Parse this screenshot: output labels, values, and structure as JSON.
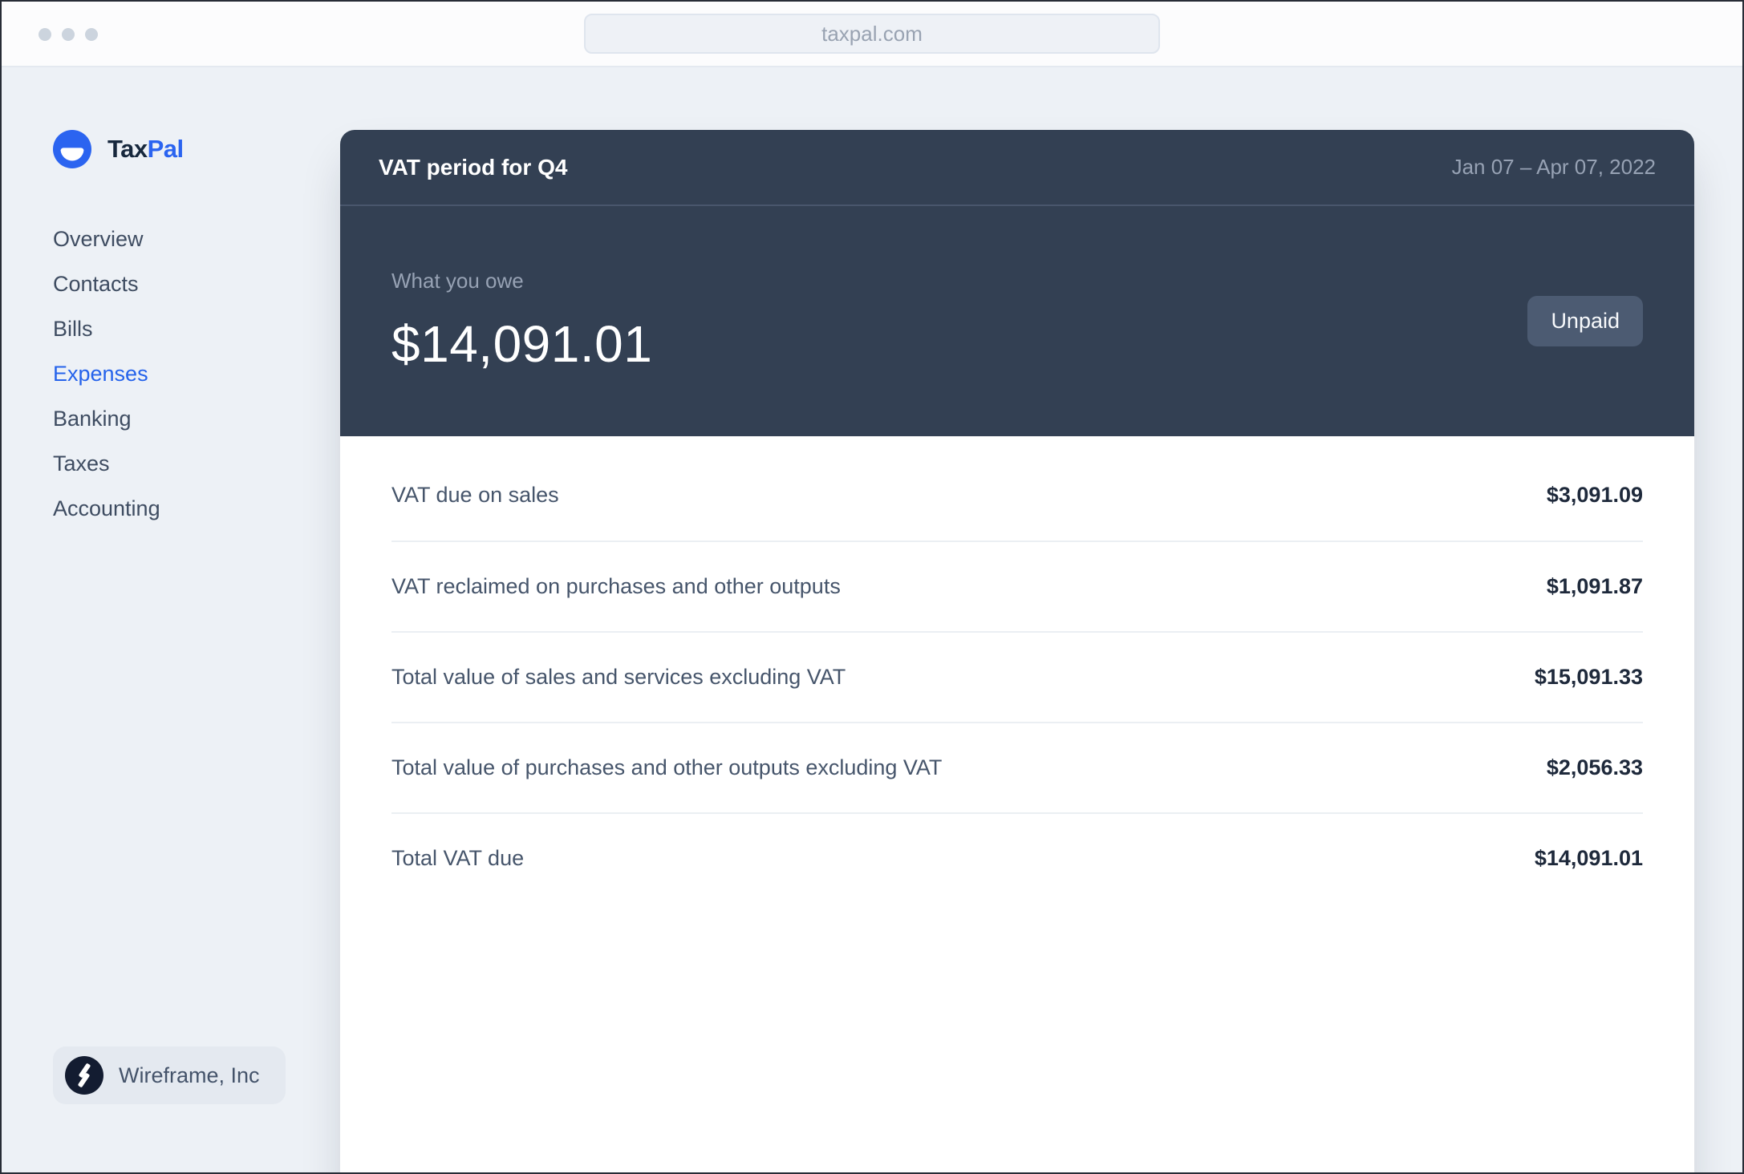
{
  "browser": {
    "url": "taxpal.com"
  },
  "brand": {
    "name_primary": "Tax",
    "name_secondary": "Pal"
  },
  "sidebar": {
    "items": [
      {
        "label": "Overview",
        "active": false
      },
      {
        "label": "Contacts",
        "active": false
      },
      {
        "label": "Bills",
        "active": false
      },
      {
        "label": "Expenses",
        "active": true
      },
      {
        "label": "Banking",
        "active": false
      },
      {
        "label": "Taxes",
        "active": false
      },
      {
        "label": "Accounting",
        "active": false
      }
    ],
    "org": {
      "name": "Wireframe, Inc"
    }
  },
  "card": {
    "title": "VAT period for Q4",
    "date_range": "Jan 07 – Apr 07, 2022",
    "owe_label": "What you owe",
    "owe_amount": "$14,091.01",
    "status_badge": "Unpaid",
    "rows": [
      {
        "label": "VAT due on sales",
        "value": "$3,091.09"
      },
      {
        "label": "VAT reclaimed on purchases and other outputs",
        "value": "$1,091.87"
      },
      {
        "label": "Total value of sales and services excluding VAT",
        "value": "$15,091.33"
      },
      {
        "label": "Total value of purchases and other outputs excluding VAT",
        "value": "$2,056.33"
      },
      {
        "label": "Total VAT due",
        "value": "$14,091.01"
      }
    ]
  },
  "colors": {
    "accent_blue": "#2563eb",
    "card_dark": "#334053",
    "badge_bg": "#4c5b72",
    "page_bg": "#edf1f6"
  }
}
